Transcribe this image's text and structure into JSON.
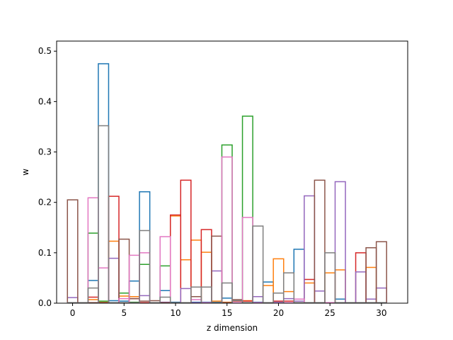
{
  "chart_data": {
    "type": "step",
    "title": "",
    "xlabel": "z dimension",
    "ylabel": "w",
    "xlim": [
      -1.55,
      32.55
    ],
    "ylim": [
      0,
      0.52
    ],
    "xticks": [
      0,
      5,
      10,
      15,
      20,
      25,
      30
    ],
    "yticks": [
      0.0,
      0.1,
      0.2,
      0.3,
      0.4,
      0.5
    ],
    "ytick_labels": [
      "0.0",
      "0.1",
      "0.2",
      "0.3",
      "0.4",
      "0.5"
    ],
    "grid": false,
    "series": [
      {
        "color": "#1f77b4",
        "values": [
          0.001,
          0.001,
          0.045,
          0.475,
          0.005,
          0.004,
          0.044,
          0.221,
          0.001,
          0.025,
          0.002,
          0.001,
          0.002,
          0.002,
          0.002,
          0.01,
          0.001,
          0.001,
          0.002,
          0.042,
          0.002,
          0.001,
          0.107,
          0.001,
          0.001,
          0.001,
          0.008,
          0.001,
          0.001,
          0.001,
          0.001
        ]
      },
      {
        "color": "#ff7f0e",
        "values": [
          0.001,
          0.001,
          0.007,
          0.002,
          0.123,
          0.014,
          0.013,
          0.001,
          0.001,
          0.001,
          0.173,
          0.086,
          0.125,
          0.101,
          0.004,
          0.002,
          0.001,
          0.005,
          0.001,
          0.035,
          0.088,
          0.023,
          0.001,
          0.04,
          0.001,
          0.06,
          0.066,
          0.001,
          0.001,
          0.071,
          0.001
        ]
      },
      {
        "color": "#2ca02c",
        "values": [
          0.001,
          0.001,
          0.139,
          0.004,
          0.001,
          0.02,
          0.002,
          0.077,
          0.001,
          0.074,
          0.001,
          0.001,
          0.001,
          0.001,
          0.001,
          0.314,
          0.001,
          0.371,
          0.001,
          0.001,
          0.001,
          0.001,
          0.001,
          0.001,
          0.001,
          0.001,
          0.001,
          0.001,
          0.001,
          0.001,
          0.001
        ]
      },
      {
        "color": "#d62728",
        "values": [
          0.001,
          0.001,
          0.012,
          0.001,
          0.212,
          0.001,
          0.009,
          0.001,
          0.001,
          0.001,
          0.175,
          0.244,
          0.001,
          0.146,
          0.001,
          0.001,
          0.004,
          0.004,
          0.001,
          0.001,
          0.004,
          0.004,
          0.001,
          0.047,
          0.001,
          0.001,
          0.001,
          0.001,
          0.1,
          0.001,
          0.001
        ]
      },
      {
        "color": "#9467bd",
        "values": [
          0.011,
          0.001,
          0.001,
          0.001,
          0.089,
          0.001,
          0.001,
          0.015,
          0.001,
          0.002,
          0.001,
          0.029,
          0.001,
          0.001,
          0.064,
          0.001,
          0.001,
          0.001,
          0.013,
          0.001,
          0.001,
          0.009,
          0.004,
          0.213,
          0.024,
          0.001,
          0.241,
          0.001,
          0.062,
          0.008,
          0.03
        ]
      },
      {
        "color": "#8c564b",
        "values": [
          0.205,
          0.001,
          0.001,
          0.001,
          0.001,
          0.127,
          0.009,
          0.004,
          0.005,
          0.001,
          0.001,
          0.001,
          0.013,
          0.001,
          0.133,
          0.001,
          0.007,
          0.001,
          0.001,
          0.001,
          0.001,
          0.001,
          0.001,
          0.001,
          0.244,
          0.001,
          0.001,
          0.001,
          0.001,
          0.11,
          0.122
        ]
      },
      {
        "color": "#e377c2",
        "values": [
          0.001,
          0.001,
          0.209,
          0.07,
          0.001,
          0.009,
          0.095,
          0.1,
          0.001,
          0.132,
          0.001,
          0.001,
          0.007,
          0.001,
          0.001,
          0.29,
          0.001,
          0.17,
          0.001,
          0.001,
          0.001,
          0.001,
          0.008,
          0.001,
          0.001,
          0.001,
          0.001,
          0.001,
          0.001,
          0.001,
          0.001
        ]
      },
      {
        "color": "#7f7f7f",
        "values": [
          0.001,
          0.001,
          0.03,
          0.352,
          0.001,
          0.001,
          0.001,
          0.144,
          0.001,
          0.012,
          0.001,
          0.001,
          0.032,
          0.032,
          0.001,
          0.04,
          0.005,
          0.001,
          0.153,
          0.001,
          0.02,
          0.06,
          0.001,
          0.001,
          0.001,
          0.1,
          0.001,
          0.001,
          0.001,
          0.001,
          0.001
        ]
      }
    ]
  }
}
